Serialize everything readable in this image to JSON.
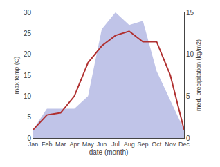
{
  "chart_data": {
    "type": "line",
    "categories": [
      "Jan",
      "Feb",
      "Mar",
      "Apr",
      "May",
      "Jun",
      "Jul",
      "Aug",
      "Sep",
      "Oct",
      "Nov",
      "Dec"
    ],
    "xlabel": "date (month)",
    "ylabel": "max temp (C)",
    "y2label": "med. precipitation (kg/m2)",
    "series": [
      {
        "type": "area",
        "axis": "y2",
        "color": "#c0c4e8",
        "values": [
          1.0,
          3.5,
          3.5,
          3.5,
          5.0,
          13.0,
          15.0,
          13.5,
          14.0,
          8.0,
          4.5,
          1.0
        ]
      },
      {
        "type": "line",
        "color": "#b03030",
        "values": [
          2.0,
          5.5,
          6.0,
          10.0,
          18.0,
          22.0,
          24.5,
          25.5,
          23.0,
          23.0,
          15.0,
          2.0
        ]
      }
    ],
    "ylim": [
      0,
      30
    ],
    "yticks": [
      0,
      5,
      10,
      15,
      20,
      25,
      30
    ],
    "y2lim": [
      0,
      15
    ],
    "y2ticks": [
      0,
      5,
      10,
      15
    ],
    "grid": false
  }
}
